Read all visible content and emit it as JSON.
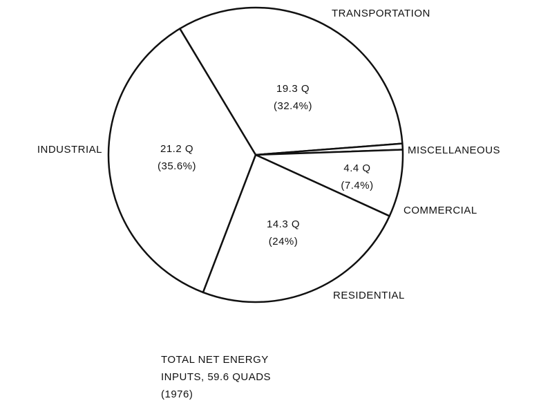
{
  "chart_data": {
    "type": "pie",
    "categories": [
      "TRANSPORTATION",
      "MISCELLANEOUS",
      "COMMERCIAL",
      "RESIDENTIAL",
      "INDUSTRIAL"
    ],
    "values": [
      19.3,
      0.4,
      4.4,
      14.3,
      21.2
    ],
    "value_labels": [
      "19.3 Q",
      null,
      "4.4 Q",
      "14.3 Q",
      "21.2 Q"
    ],
    "percents": [
      32.4,
      0.6,
      7.4,
      24,
      35.6
    ],
    "percent_labels": [
      "(32.4%)",
      null,
      "(7.4%)",
      "(24%)",
      "(35.6%)"
    ],
    "color": "#ffffff",
    "start_angle": -31,
    "caption": [
      "TOTAL NET ENERGY",
      "INPUTS, 59.6  QUADS",
      "(1976)"
    ]
  }
}
